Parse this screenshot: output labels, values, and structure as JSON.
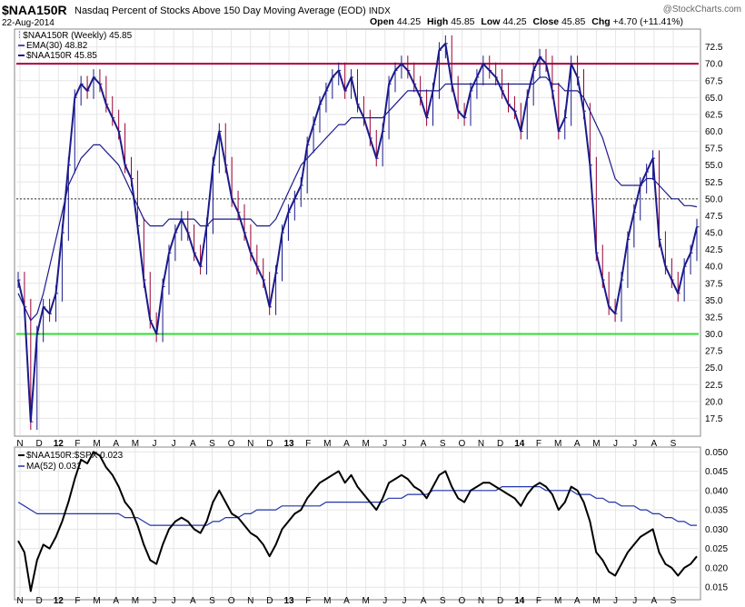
{
  "header": {
    "symbol": "$NAA150R",
    "description": "Nasdaq Percent of Stocks Above 150 Day Moving Average (EOD)",
    "exchange": "INDX",
    "date": "22-Aug-2014",
    "watermark": "@StockCharts.com",
    "quote": {
      "open_label": "Open",
      "open": "44.25",
      "high_label": "High",
      "high": "45.85",
      "low_label": "Low",
      "low": "44.25",
      "close_label": "Close",
      "close": "45.85",
      "chg_label": "Chg",
      "chg": "+4.70 (+11.41%)"
    }
  },
  "colors": {
    "price": "#1a1a8c",
    "down_bar": "#990033",
    "ema": "#1a1a8c",
    "upper_line": "#b0003c",
    "lower_line": "#33dd33",
    "ratio": "#000000",
    "ma52": "#2233aa",
    "grid": "#e6e6e6",
    "frame": "#888888"
  },
  "chart_data": [
    {
      "type": "line",
      "panel": "main",
      "legend": [
        "$NAA150R (Weekly) 45.85",
        "EMA(30) 48.82",
        "$NAA150R 45.85"
      ],
      "ylim": [
        15,
        75
      ],
      "yticks": [
        17.5,
        20.0,
        22.5,
        25.0,
        27.5,
        30.0,
        32.5,
        35.0,
        37.5,
        40.0,
        42.5,
        45.0,
        47.5,
        50.0,
        52.5,
        55.0,
        57.5,
        60.0,
        62.5,
        65.0,
        67.5,
        70.0,
        72.5
      ],
      "reference_lines": [
        70.0,
        50.0,
        30.0
      ],
      "x_month_labels": [
        "N",
        "D",
        "12",
        "F",
        "M",
        "A",
        "M",
        "J",
        "J",
        "A",
        "S",
        "O",
        "N",
        "D",
        "13",
        "F",
        "M",
        "A",
        "M",
        "J",
        "J",
        "A",
        "S",
        "O",
        "N",
        "D",
        "14",
        "F",
        "M",
        "A",
        "M",
        "J",
        "J",
        "A",
        "S"
      ],
      "series": [
        {
          "name": "$NAA150R",
          "values": [
            38,
            34,
            17,
            30,
            34,
            33,
            36,
            45,
            55,
            65,
            67,
            66,
            68,
            67,
            64,
            62,
            60,
            55,
            53,
            46,
            38,
            32,
            30,
            37,
            42,
            45,
            47,
            45,
            42,
            40,
            46,
            55,
            60,
            55,
            50,
            48,
            45,
            42,
            40,
            38,
            34,
            39,
            45,
            48,
            50,
            52,
            58,
            61,
            64,
            66,
            68,
            69,
            66,
            68,
            64,
            62,
            59,
            56,
            60,
            67,
            69,
            70,
            69,
            67,
            65,
            62,
            66,
            72,
            73,
            67,
            63,
            62,
            66,
            68,
            70,
            69,
            68,
            66,
            64,
            63,
            60,
            65,
            69,
            71,
            70,
            66,
            60,
            62,
            70,
            68,
            63,
            55,
            42,
            38,
            34,
            33,
            38,
            44,
            48,
            52,
            54,
            56,
            44,
            40,
            38,
            36,
            40,
            42,
            45.85
          ]
        },
        {
          "name": "EMA(30)",
          "values": [
            36,
            34,
            32,
            33,
            36,
            40,
            44,
            48,
            52,
            54,
            56,
            57,
            58,
            58,
            57,
            56,
            55,
            53,
            51,
            49,
            47,
            46,
            46,
            46,
            47,
            47,
            47,
            47,
            47,
            46,
            46,
            47,
            47,
            47,
            47,
            47,
            47,
            47,
            46,
            46,
            46,
            47,
            49,
            51,
            53,
            55,
            56,
            57,
            58,
            59,
            60,
            61,
            61,
            62,
            62,
            62,
            62,
            62,
            62,
            63,
            64,
            65,
            66,
            66,
            66,
            66,
            66,
            66,
            67,
            67,
            67,
            67,
            67,
            67,
            67,
            67,
            67,
            67,
            67,
            67,
            67,
            67,
            67,
            68,
            68,
            67,
            67,
            66,
            66,
            66,
            65,
            63,
            61,
            59,
            56,
            53,
            52,
            52,
            52,
            52,
            53,
            53,
            52,
            51,
            50,
            50,
            49,
            49,
            48.82
          ]
        }
      ]
    },
    {
      "type": "line",
      "panel": "lower",
      "legend": [
        "$NAA150R:$SPX 0.023",
        "MA(52) 0.031"
      ],
      "ylim": [
        0.012,
        0.051
      ],
      "yticks": [
        0.015,
        0.02,
        0.025,
        0.03,
        0.035,
        0.04,
        0.045,
        0.05
      ],
      "series": [
        {
          "name": "$NAA150R:$SPX",
          "values": [
            0.027,
            0.024,
            0.014,
            0.022,
            0.026,
            0.025,
            0.028,
            0.032,
            0.037,
            0.043,
            0.048,
            0.047,
            0.05,
            0.049,
            0.046,
            0.044,
            0.041,
            0.037,
            0.035,
            0.031,
            0.026,
            0.022,
            0.021,
            0.026,
            0.03,
            0.032,
            0.033,
            0.032,
            0.03,
            0.029,
            0.032,
            0.037,
            0.04,
            0.037,
            0.034,
            0.033,
            0.031,
            0.029,
            0.028,
            0.026,
            0.023,
            0.026,
            0.03,
            0.032,
            0.034,
            0.035,
            0.038,
            0.04,
            0.042,
            0.043,
            0.044,
            0.045,
            0.042,
            0.044,
            0.041,
            0.039,
            0.037,
            0.035,
            0.038,
            0.042,
            0.043,
            0.044,
            0.043,
            0.041,
            0.04,
            0.038,
            0.041,
            0.044,
            0.045,
            0.041,
            0.038,
            0.037,
            0.04,
            0.041,
            0.042,
            0.042,
            0.041,
            0.04,
            0.039,
            0.038,
            0.036,
            0.039,
            0.041,
            0.042,
            0.041,
            0.039,
            0.035,
            0.037,
            0.041,
            0.04,
            0.037,
            0.032,
            0.024,
            0.022,
            0.019,
            0.018,
            0.021,
            0.024,
            0.026,
            0.028,
            0.029,
            0.03,
            0.024,
            0.021,
            0.02,
            0.018,
            0.02,
            0.021,
            0.023
          ]
        },
        {
          "name": "MA(52)",
          "values": [
            0.037,
            0.036,
            0.035,
            0.034,
            0.034,
            0.034,
            0.034,
            0.034,
            0.034,
            0.034,
            0.034,
            0.034,
            0.034,
            0.034,
            0.034,
            0.034,
            0.034,
            0.033,
            0.033,
            0.033,
            0.032,
            0.031,
            0.031,
            0.031,
            0.031,
            0.031,
            0.031,
            0.031,
            0.031,
            0.031,
            0.031,
            0.032,
            0.032,
            0.033,
            0.033,
            0.033,
            0.034,
            0.034,
            0.035,
            0.035,
            0.035,
            0.035,
            0.036,
            0.036,
            0.036,
            0.036,
            0.036,
            0.036,
            0.036,
            0.037,
            0.037,
            0.037,
            0.037,
            0.037,
            0.037,
            0.037,
            0.037,
            0.037,
            0.037,
            0.038,
            0.038,
            0.038,
            0.039,
            0.039,
            0.039,
            0.039,
            0.04,
            0.04,
            0.04,
            0.04,
            0.04,
            0.04,
            0.04,
            0.04,
            0.04,
            0.04,
            0.04,
            0.041,
            0.041,
            0.041,
            0.041,
            0.041,
            0.041,
            0.041,
            0.04,
            0.04,
            0.04,
            0.04,
            0.04,
            0.039,
            0.039,
            0.039,
            0.038,
            0.038,
            0.037,
            0.037,
            0.036,
            0.036,
            0.036,
            0.035,
            0.035,
            0.034,
            0.034,
            0.033,
            0.033,
            0.032,
            0.032,
            0.031,
            0.031
          ]
        }
      ]
    }
  ]
}
